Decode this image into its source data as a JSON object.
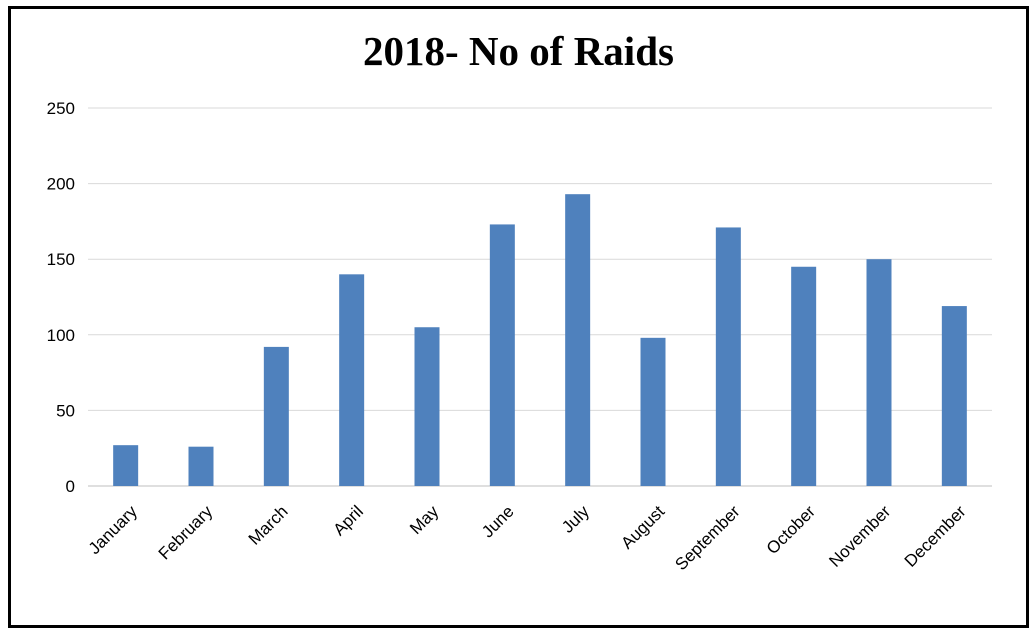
{
  "chart_data": {
    "type": "bar",
    "title": "2018- No of Raids",
    "xlabel": "",
    "ylabel": "",
    "categories": [
      "January",
      "February",
      "March",
      "April",
      "May",
      "June",
      "July",
      "August",
      "September",
      "October",
      "November",
      "December"
    ],
    "values": [
      27,
      26,
      92,
      140,
      105,
      173,
      193,
      98,
      171,
      145,
      150,
      119
    ],
    "ylim": [
      0,
      250
    ],
    "yticks": [
      0,
      50,
      100,
      150,
      200,
      250
    ],
    "grid": true,
    "legend": "none",
    "bar_color": "#4F81BD",
    "grid_color": "#D9D9D9",
    "axis_color": "#BFBFBF"
  }
}
